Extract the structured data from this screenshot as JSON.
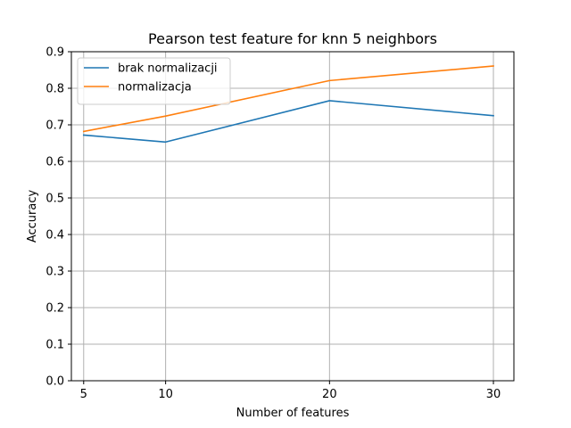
{
  "chart_data": {
    "type": "line",
    "title": "Pearson test feature for knn 5 neighbors",
    "xlabel": "Number of features",
    "ylabel": "Accuracy",
    "x": [
      5,
      10,
      20,
      30
    ],
    "xticks": [
      5,
      10,
      20,
      30
    ],
    "xlim": [
      4.25,
      31.25
    ],
    "ylim": [
      0.0,
      0.9
    ],
    "yticks": [
      0.0,
      0.1,
      0.2,
      0.3,
      0.4,
      0.5,
      0.6,
      0.7,
      0.8,
      0.9
    ],
    "grid": true,
    "legend_position": "top-left",
    "series": [
      {
        "name": "brak normalizacji",
        "color": "#1f77b4",
        "values": [
          0.672,
          0.653,
          0.766,
          0.725
        ]
      },
      {
        "name": "normalizacja",
        "color": "#ff7f0e",
        "values": [
          0.682,
          0.724,
          0.821,
          0.861
        ]
      }
    ]
  }
}
